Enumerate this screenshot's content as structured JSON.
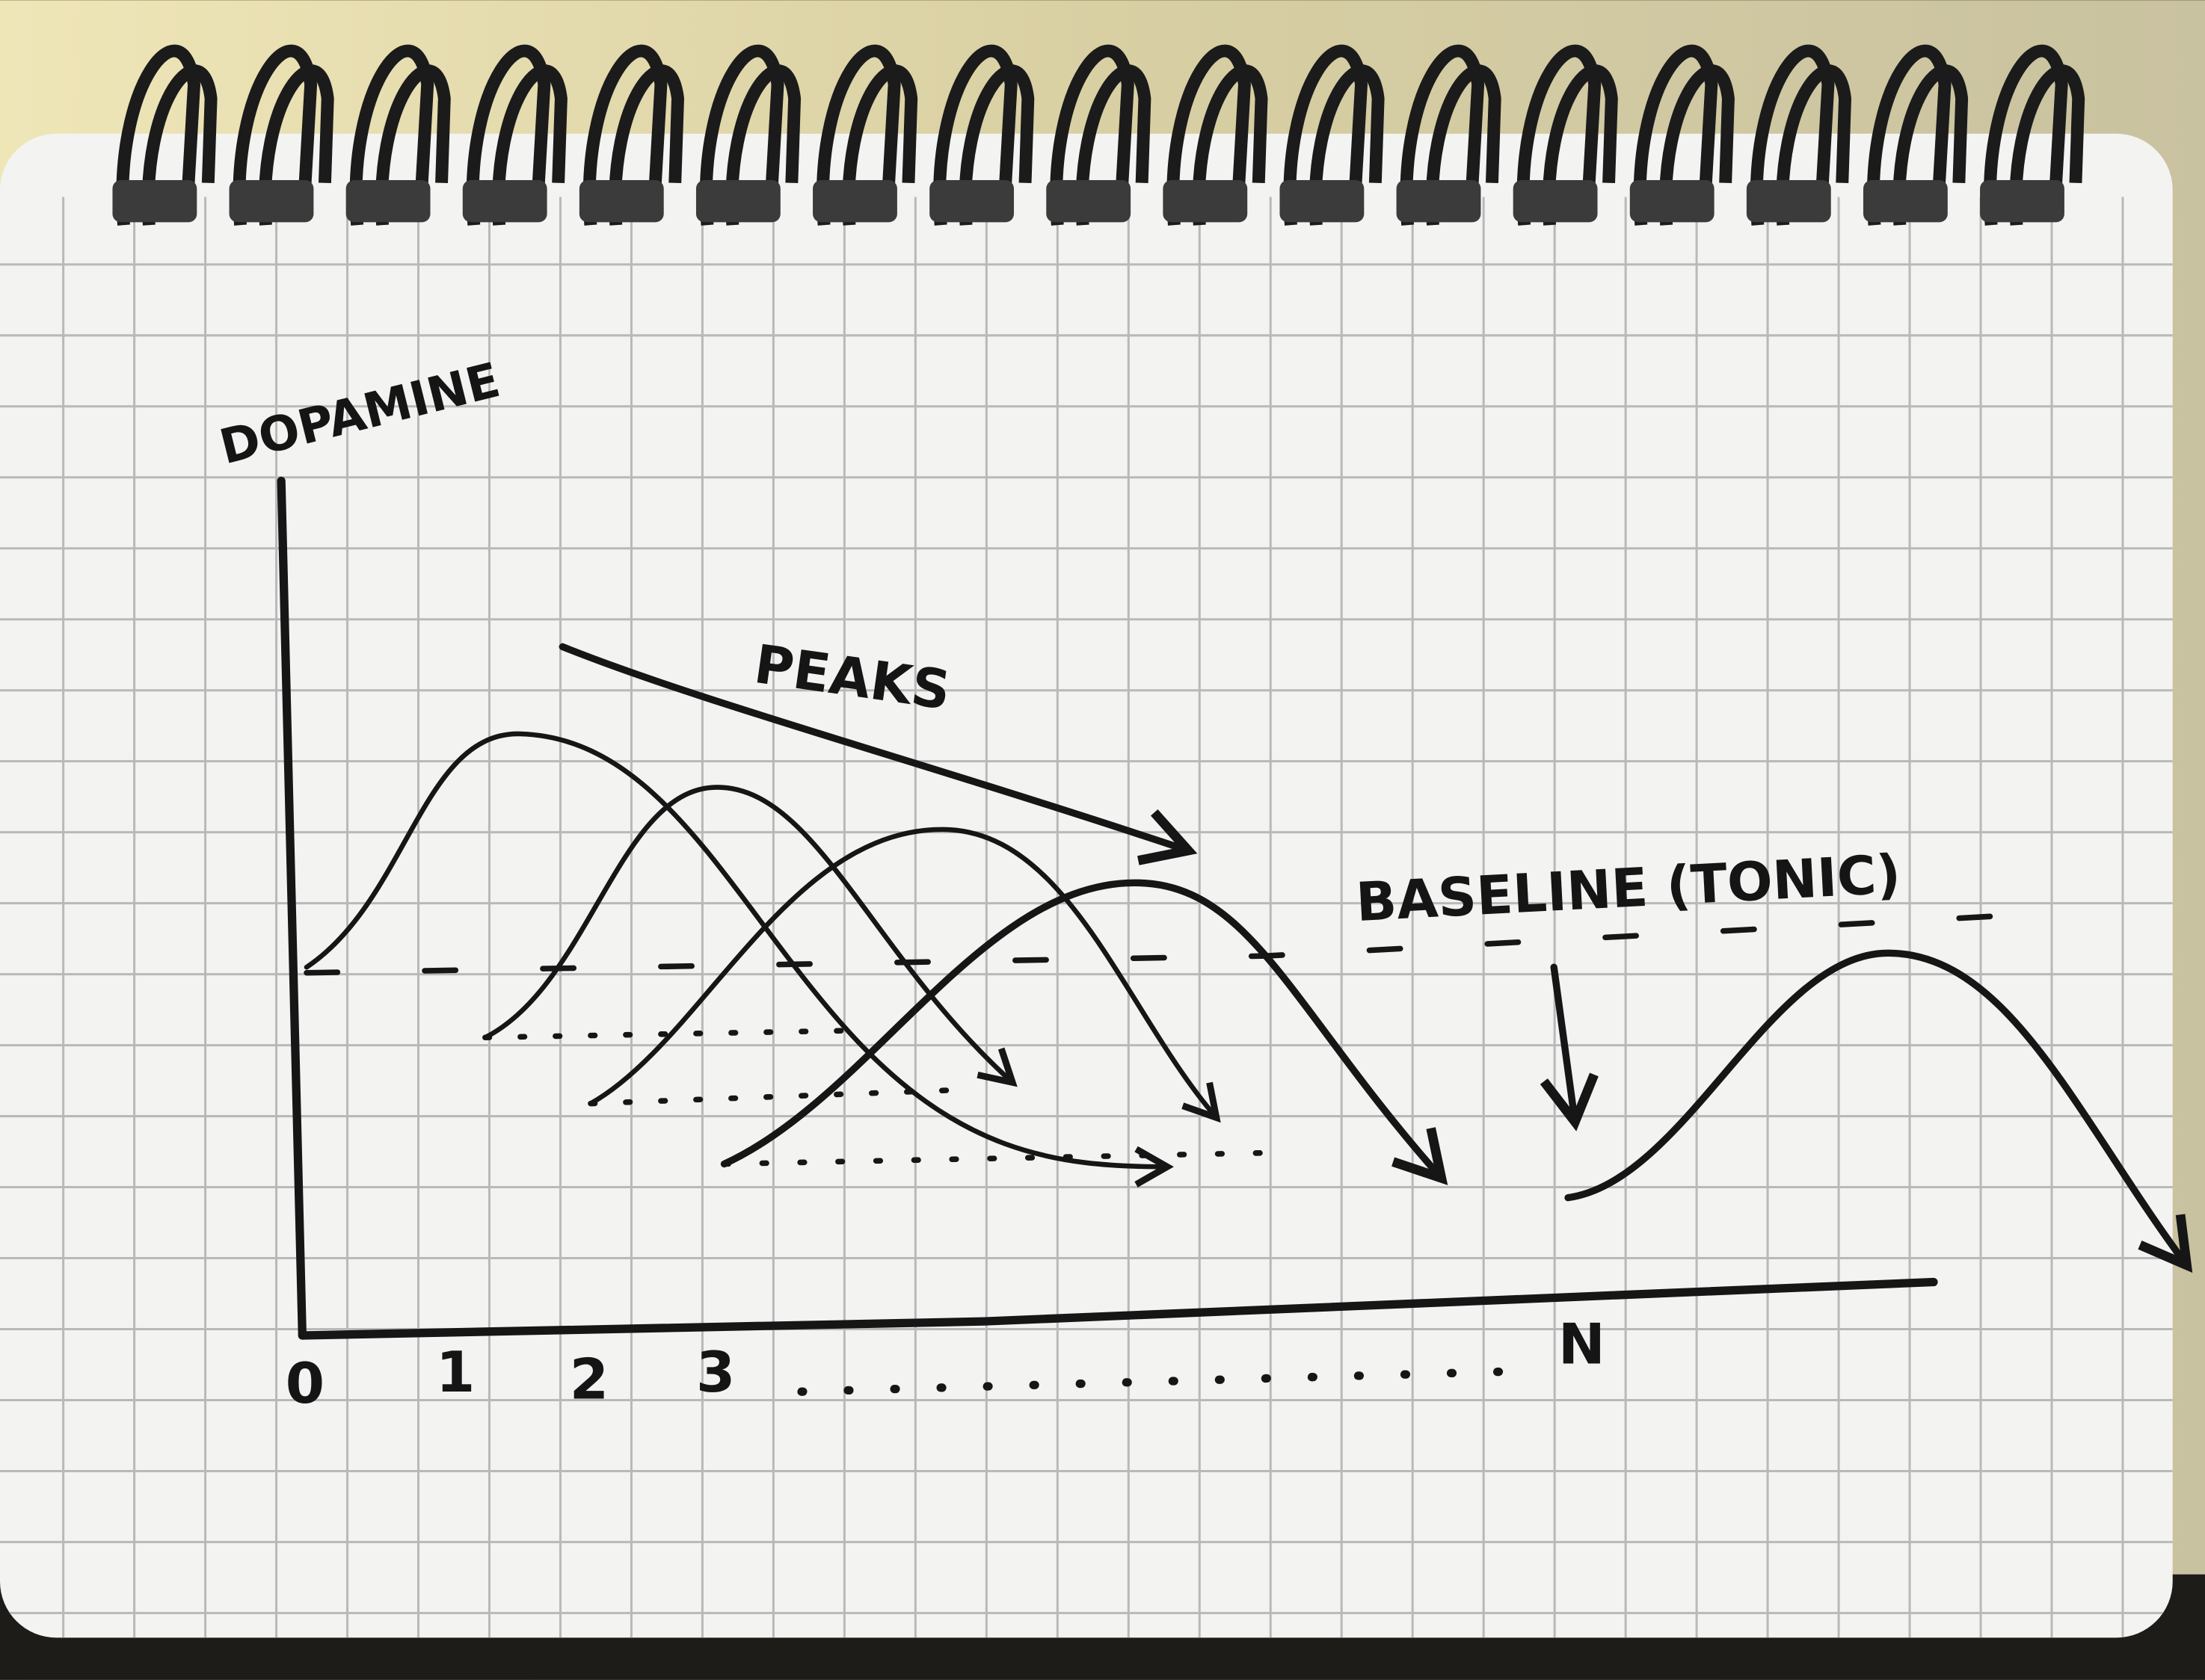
{
  "axes": {
    "y_label": "DOPAMINE",
    "x_labels": [
      "0",
      "1",
      "2",
      "3",
      "N"
    ]
  },
  "annotations": {
    "peaks": "PEAKS",
    "baseline": "BASELINE (TONIC)"
  }
}
